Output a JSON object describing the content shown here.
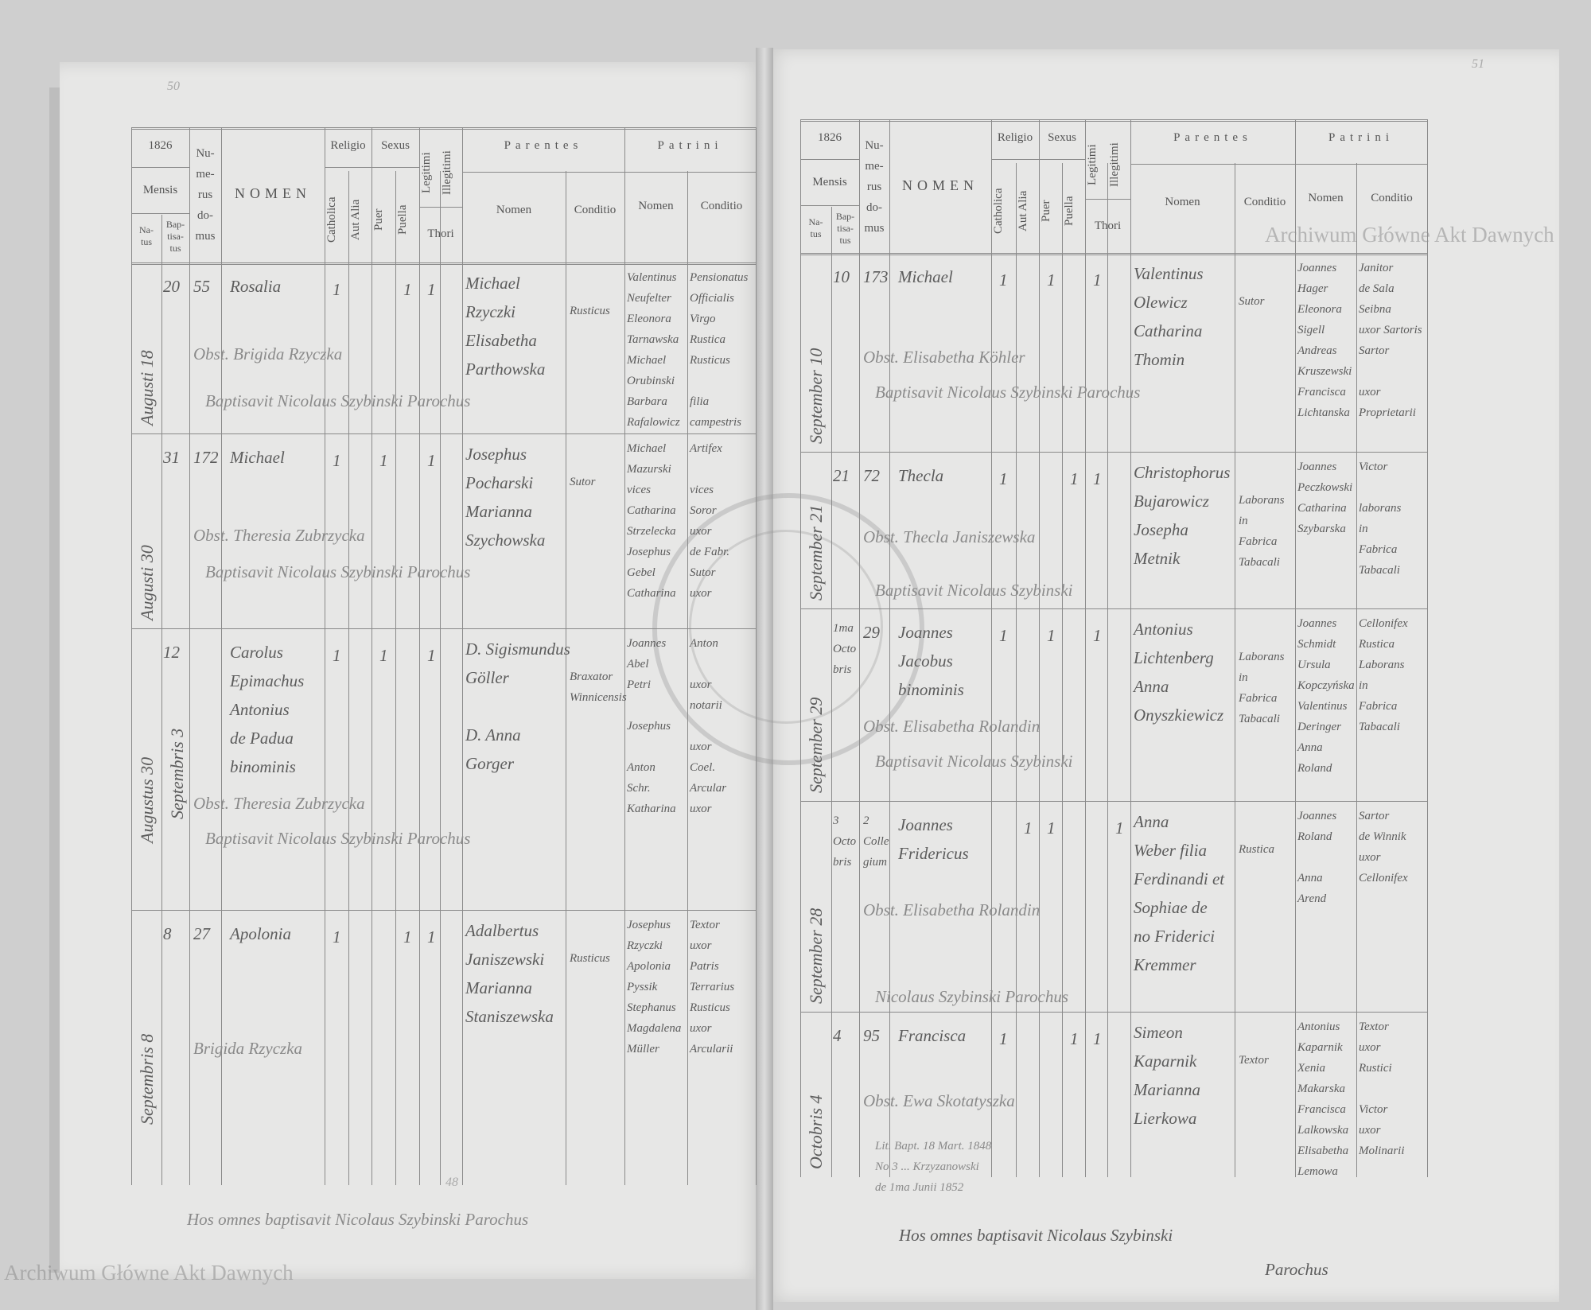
{
  "watermark": "Archiwum Główne Akt Dawnych",
  "stamp_text": "ARCHIWUM GŁÓWNE AKT DAWNYCH",
  "header": {
    "year": "1826",
    "mensis": "Mensis",
    "natus": "Na-\ntus",
    "baptisatus": "Bap-\ntisa-\ntus",
    "numerus_domus": "Nu-\nme-\nrus\ndo-\nmus",
    "nomen": "NOMEN",
    "religio": "Religio",
    "catholica": "Catholica",
    "aut_alia": "Aut Alia",
    "sexus": "Sexus",
    "puer": "Puer",
    "puella": "Puella",
    "legitimi": "Legitimi",
    "illegitimi": "Illegitimi",
    "thori": "Thori",
    "parentes": "Parentes",
    "patrini": "Patrini",
    "col_nomen": "Nomen",
    "col_conditio": "Conditio"
  },
  "left_page": {
    "page_number": "50",
    "footer_number": "48",
    "closing_note": "Hos omnes baptisavit Nicolaus Szybinski Parochus",
    "entries": [
      {
        "month": "Augusti 18",
        "baptisatus": "20",
        "domus": "55",
        "nomen": "Rosalia",
        "catholica": "1",
        "aut_alia": "",
        "puer": "",
        "puella": "1",
        "legitimi": "1",
        "illegitimi": "",
        "parentes": "Michael\nRzyczki\nElisabetha\nParthowska",
        "parentes_conditio": "Rusticus",
        "patrini": "Valentinus\nNeufelter\nEleonora\nTarnawska\nMichael\nOrubinski\nBarbara\nRafalowicz",
        "patrini_conditio": "Pensionatus\nOfficialis\nVirgo\nRustica\nRusticus\n\nfilia\ncampestris",
        "obstetrix": "Obst. Brigida Rzyczka",
        "baptisavit": "Baptisavit Nicolaus Szybinski Parochus"
      },
      {
        "month": "Augusti 30",
        "baptisatus": "31",
        "domus": "172",
        "nomen": "Michael",
        "catholica": "1",
        "aut_alia": "",
        "puer": "1",
        "puella": "",
        "legitimi": "1",
        "illegitimi": "",
        "parentes": "Josephus\nPocharski\nMarianna\nSzychowska",
        "parentes_conditio": "Sutor",
        "patrini": "Michael\nMazurski\nvices\nCatharina\nStrzelecka\nJosephus\nGebel\nCatharina",
        "patrini_conditio": "Artifex\n\nvices\nSoror\nuxor\nde Fabr.\nSutor\nuxor",
        "obstetrix": "Obst. Theresia Zubrzycka",
        "baptisavit": "Baptisavit Nicolaus Szybinski Parochus"
      },
      {
        "month": "Augustus 30",
        "month2": "Septembris 3",
        "baptisatus": "12",
        "domus": "",
        "nomen": "Carolus\nEpimachus\nAntonius\nde Padua\nbinominis",
        "catholica": "1",
        "aut_alia": "",
        "puer": "1",
        "puella": "",
        "legitimi": "1",
        "illegitimi": "",
        "parentes": "D. Sigismundus\nGöller\n\nD. Anna\nGorger",
        "parentes_conditio": "Braxator\nWinnicensis",
        "patrini": "Joannes\nAbel\nPetri\n\nJosephus\n\nAnton\nSchr.\nKatharina",
        "patrini_conditio": "Anton\n\nuxor\nnotarii\n\nuxor\nCoel.\nArcular\nuxor",
        "obstetrix": "Obst. Theresia Zubrzycka",
        "baptisavit": "Baptisavit Nicolaus Szybinski Parochus"
      },
      {
        "month": "Septembris 8",
        "baptisatus": "8",
        "domus": "27",
        "nomen": "Apolonia",
        "catholica": "1",
        "aut_alia": "",
        "puer": "",
        "puella": "1",
        "legitimi": "1",
        "illegitimi": "",
        "parentes": "Adalbertus\nJaniszewski\nMarianna\nStaniszewska",
        "parentes_conditio": "Rusticus",
        "patrini": "Josephus\nRzyczki\nApolonia\nPyssik\nStephanus\nMagdalena\nMüller",
        "patrini_conditio": "Textor\nuxor\nPatris\nTerrarius\nRusticus\nuxor\nArcularii",
        "obstetrix": "Brigida Rzyczka",
        "baptisavit": ""
      }
    ]
  },
  "right_page": {
    "page_number": "51",
    "closing_note": "Hos omnes baptisavit Nicolaus Szybinski",
    "closing_sign": "Parochus",
    "entries": [
      {
        "month": "September 10",
        "baptisatus": "10",
        "domus": "173",
        "nomen": "Michael",
        "catholica": "1",
        "aut_alia": "",
        "puer": "1",
        "puella": "",
        "legitimi": "1",
        "illegitimi": "",
        "parentes": "Valentinus\nOlewicz\nCatharina\nThomin",
        "parentes_conditio": "Sutor",
        "patrini": "Joannes\nHager\nEleonora\nSigell\nAndreas\nKruszewski\nFrancisca\nLichtanska",
        "patrini_conditio": "Janitor\nde Sala\nSeibna\nuxor Sartoris\nSartor\n\nuxor\nProprietarii",
        "obstetrix": "Obst. Elisabetha Köhler",
        "baptisavit": "Baptisavit Nicolaus Szybinski Parochus"
      },
      {
        "month": "September 21",
        "baptisatus": "21",
        "domus": "72",
        "nomen": "Thecla",
        "catholica": "1",
        "aut_alia": "",
        "puer": "",
        "puella": "1",
        "legitimi": "1",
        "illegitimi": "",
        "parentes": "Christophorus\nBujarowicz\nJosepha\nMetnik",
        "parentes_conditio": "Laborans\nin\nFabrica\nTabacali",
        "patrini": "Joannes\nPeczkowski\nCatharina\nSzybarska",
        "patrini_conditio": "Victor\n\nlaborans\nin\nFabrica\nTabacali",
        "obstetrix": "Obst. Thecla Janiszewska",
        "baptisavit": "Baptisavit Nicolaus Szybinski"
      },
      {
        "month": "September 29",
        "baptisatus": "1ma\nOcto\nbris",
        "domus": "29",
        "nomen": "Joannes\nJacobus\nbinominis",
        "catholica": "1",
        "aut_alia": "",
        "puer": "1",
        "puella": "",
        "legitimi": "1",
        "illegitimi": "",
        "parentes": "Antonius\nLichtenberg\nAnna\nOnyszkiewicz",
        "parentes_conditio": "Laborans\nin\nFabrica\nTabacali",
        "patrini": "Joannes\nSchmidt\nUrsula\nKopczyńska\nValentinus\nDeringer\nAnna\nRoland",
        "patrini_conditio": "Cellonifex\nRustica\nLaborans\nin\nFabrica\nTabacali",
        "obstetrix": "Obst. Elisabetha Rolandin",
        "baptisavit": "Baptisavit Nicolaus Szybinski"
      },
      {
        "month": "September 28",
        "baptisatus": "3\nOcto\nbris",
        "domus": "2\nColle\ngium",
        "nomen": "Joannes\nFridericus",
        "catholica": "",
        "aut_alia": "1",
        "puer": "1",
        "puella": "",
        "legitimi": "",
        "illegitimi": "1",
        "parentes": "Anna\nWeber filia\nFerdinandi et\nSophiae de\nno Friderici\nKremmer",
        "parentes_conditio": "Rustica",
        "patrini": "Joannes\nRoland\n\nAnna\nArend",
        "patrini_conditio": "Sartor\nde Winnik\nuxor\nCellonifex",
        "obstetrix": "Obst. Elisabetha Rolandin",
        "baptisavit": "Nicolaus Szybinski Parochus"
      },
      {
        "month": "Octobris 4",
        "baptisatus": "4",
        "domus": "95",
        "nomen": "Francisca",
        "catholica": "1",
        "aut_alia": "",
        "puer": "",
        "puella": "1",
        "legitimi": "1",
        "illegitimi": "",
        "parentes": "Simeon\nKaparnik\nMarianna\nLierkowa",
        "parentes_conditio": "Textor",
        "patrini": "Antonius\nKaparnik\nXenia\nMakarska\nFrancisca\nLalkowska\nElisabetha\nLemowa",
        "patrini_conditio": "Textor\nuxor\nRustici\n\nVictor\nuxor\nMolinarii",
        "obstetrix": "Obst. Ewa Skotatyszka",
        "baptisavit": "Lit. Bapt. 18 Mart. 1848\nNo 3 ... Krzyzanowski\nde 1ma Junii 1852"
      }
    ]
  }
}
